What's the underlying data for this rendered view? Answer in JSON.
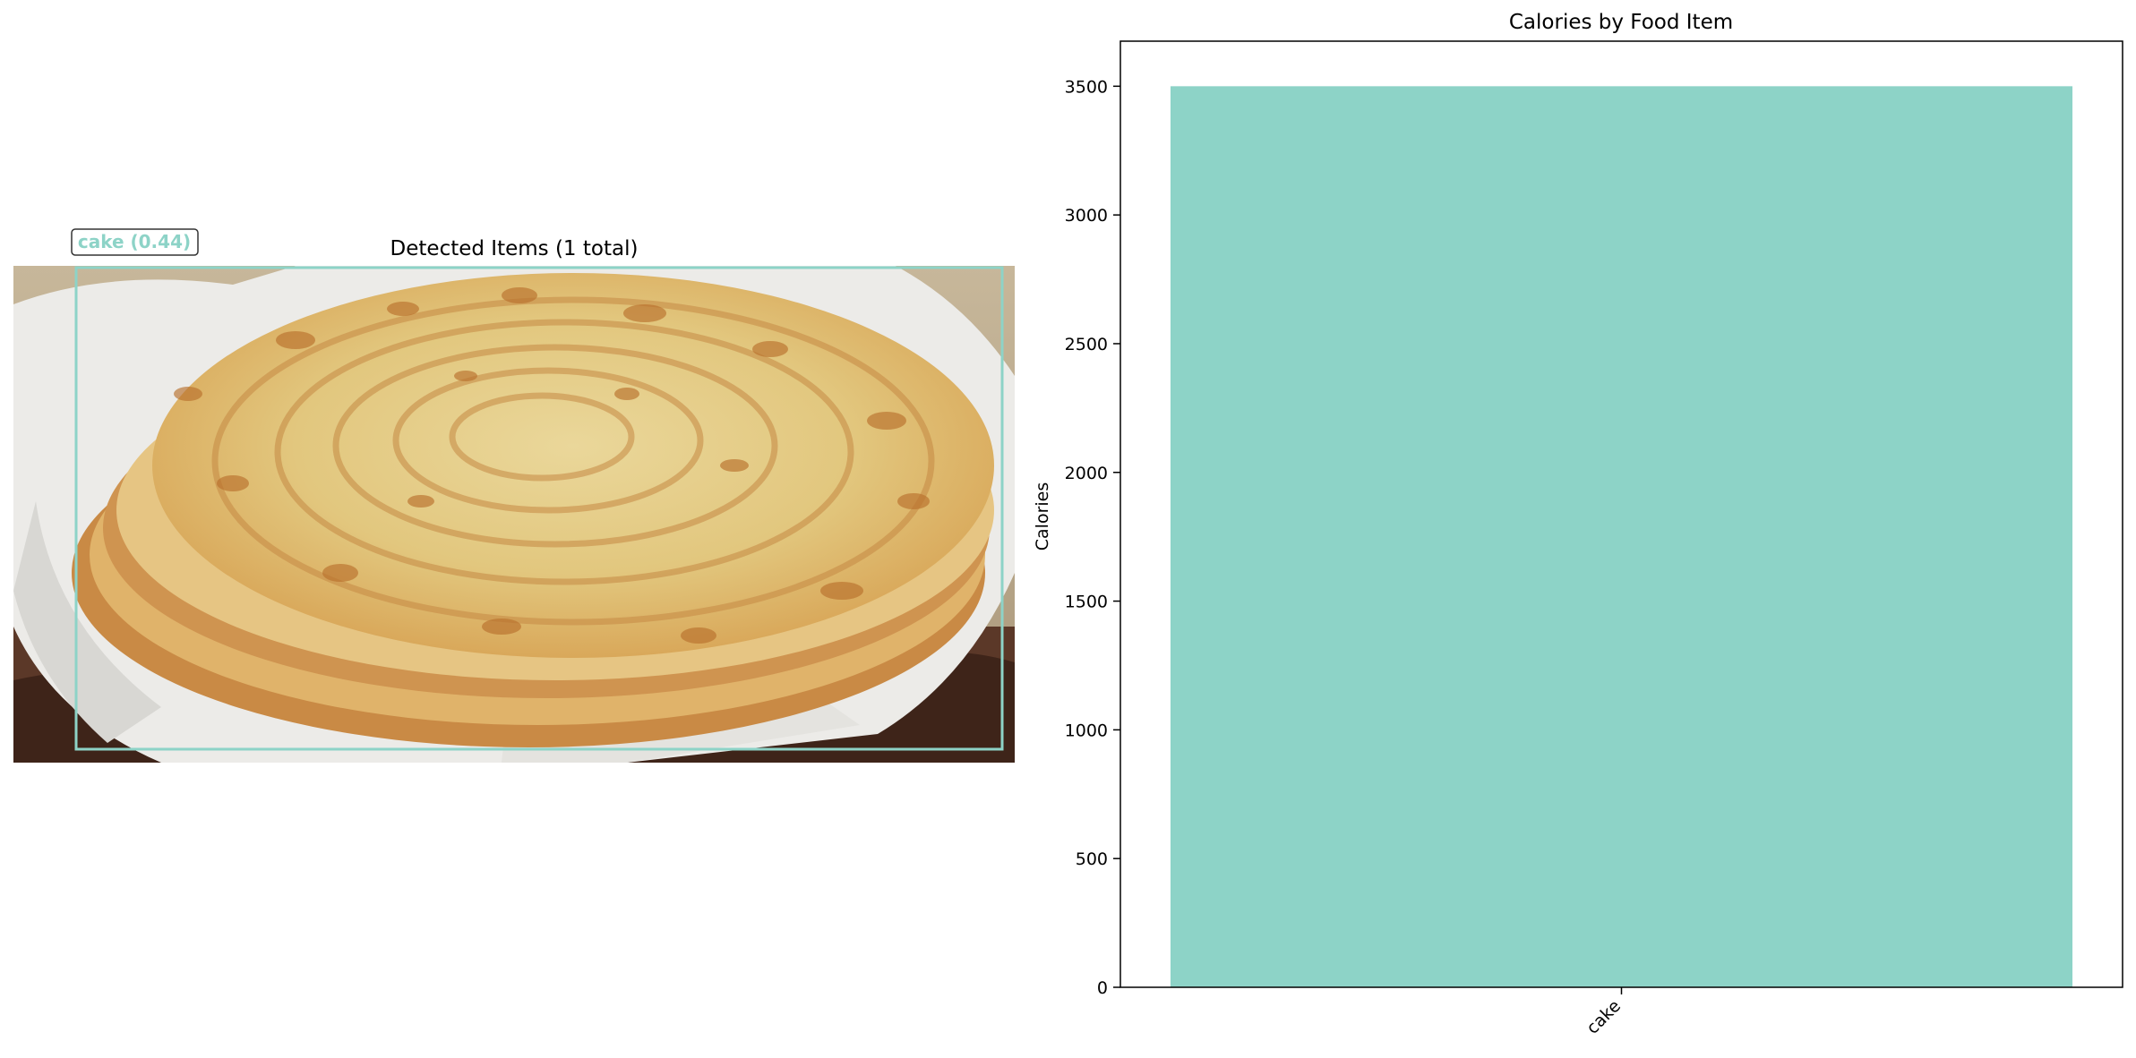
{
  "left_panel": {
    "title": "Detected Items (1 total)",
    "detection": {
      "label": "cake (0.44)",
      "color": "#8dd3c7"
    },
    "photo": {
      "subject": "stack of flaky layered flatbreads (paratha) on white paper in a basket",
      "colors": {
        "bread": "#dcc785",
        "crust": "#c98a45",
        "paper": "#eeeeec",
        "basket": "#5b3828",
        "background": "#b9aa90"
      }
    }
  },
  "chart_data": {
    "type": "bar",
    "title": "Calories by Food Item",
    "xlabel": "",
    "ylabel": "Calories",
    "categories": [
      "cake"
    ],
    "values": [
      3500
    ],
    "ylim": [
      0,
      3675
    ],
    "yticks": [
      0,
      500,
      1000,
      1500,
      2000,
      2500,
      3000,
      3500
    ],
    "xtick_rotation": -45,
    "grid": false,
    "bar_color": "#8dd3c7"
  }
}
